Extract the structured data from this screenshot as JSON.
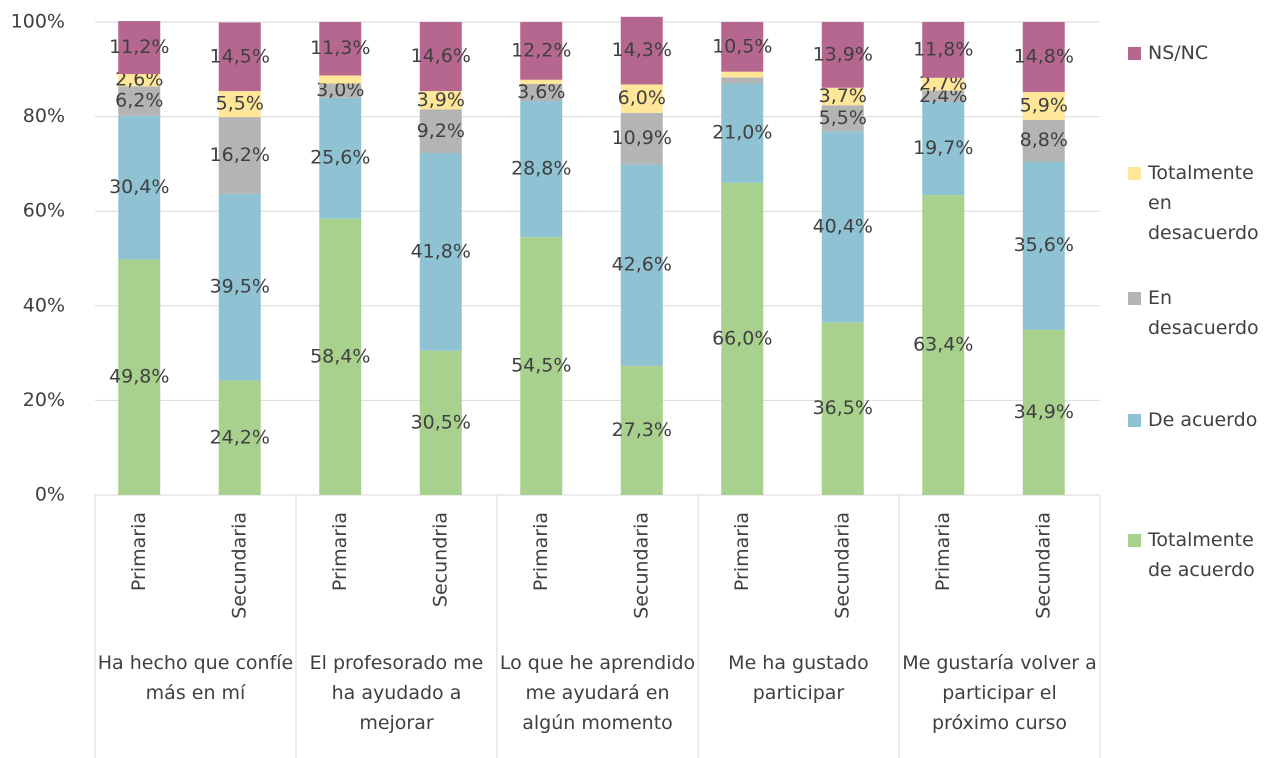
{
  "chart_data": {
    "type": "stacked_bar",
    "groups": [
      "Ha hecho que confíe más en mí",
      "El profesorado me ha ayudado a mejorar",
      "Lo que he aprendido me ayudará en algún momento",
      "Me ha gustado participar",
      "Me gustaría volver a participar el próximo curso"
    ],
    "categories": [
      "Primaria",
      "Secundaria",
      "Primaria",
      "Secundria",
      "Primaria",
      "Secundaria",
      "Primaria",
      "Secundaria",
      "Primaria",
      "Secundaria"
    ],
    "ylim": [
      0,
      100
    ],
    "yticks": [
      {
        "value": 0,
        "label": "0%"
      },
      {
        "value": 20,
        "label": "20%"
      },
      {
        "value": 40,
        "label": "40%"
      },
      {
        "value": 60,
        "label": "60%"
      },
      {
        "value": 80,
        "label": "80%"
      },
      {
        "value": 100,
        "label": "100%"
      }
    ],
    "grid": true,
    "legend": "right",
    "series": [
      {
        "name": "Totalmente de acuerdo",
        "color": "#a9d18e",
        "values": [
          49.8,
          24.2,
          58.4,
          30.5,
          54.5,
          27.3,
          66.0,
          36.5,
          63.4,
          34.9
        ],
        "value_labels": [
          "49,8%",
          "24,2%",
          "58,4%",
          "30,5%",
          "54,5%",
          "27,3%",
          "66,0%",
          "36,5%",
          "63,4%",
          "34,9%"
        ]
      },
      {
        "name": "De acuerdo",
        "color": "#8fc3d3",
        "values": [
          30.4,
          39.5,
          25.6,
          41.8,
          28.8,
          42.6,
          21.0,
          40.4,
          19.7,
          35.6
        ],
        "value_labels": [
          "30,4%",
          "39,5%",
          "25,6%",
          "41,8%",
          "28,8%",
          "42,6%",
          "21,0%",
          "40,4%",
          "19,7%",
          "35,6%"
        ]
      },
      {
        "name": "En desacuerdo",
        "color": "#b4b4b4",
        "values": [
          6.2,
          16.2,
          3.0,
          9.2,
          3.6,
          10.9,
          1.3,
          5.5,
          2.4,
          8.8
        ],
        "value_labels": [
          "6,2%",
          "16,2%",
          "3,0%",
          "9,2%",
          "3,6%",
          "10,9%",
          null,
          "5,5%",
          "2,4%",
          "8,8%"
        ]
      },
      {
        "name": "Totalmente en desacuerdo",
        "color": "#ffe699",
        "values": [
          2.6,
          5.5,
          1.7,
          3.9,
          0.9,
          6.0,
          1.2,
          3.7,
          2.7,
          5.9
        ],
        "value_labels": [
          "2,6%",
          "5,5%",
          null,
          "3,9%",
          null,
          "6,0%",
          null,
          "3,7%",
          "2,7%",
          "5,9%"
        ]
      },
      {
        "name": "NS/NC",
        "color": "#b5678f",
        "values": [
          11.2,
          14.5,
          11.3,
          14.6,
          12.2,
          14.3,
          10.5,
          13.9,
          11.8,
          14.8
        ],
        "value_labels": [
          "11,2%",
          "14,5%",
          "11,3%",
          "14,6%",
          "12,2%",
          "14,3%",
          "10,5%",
          "13,9%",
          "11,8%",
          "14,8%"
        ]
      }
    ]
  }
}
